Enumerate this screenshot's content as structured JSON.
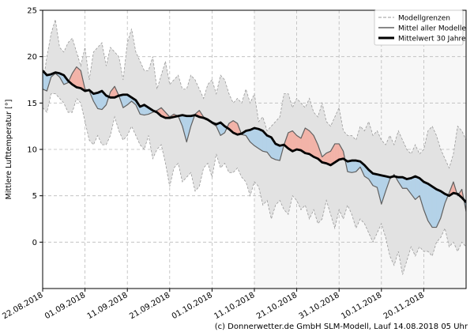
{
  "chart_data": {
    "type": "line",
    "ylabel": "Mittlere Lufttemperatur [°]",
    "ylim": [
      -5,
      25
    ],
    "yticks": [
      0,
      5,
      10,
      15,
      20,
      25
    ],
    "xticks": [
      "22.08.2018",
      "01.09.2018",
      "11.09.2018",
      "21.09.2018",
      "01.10.2018",
      "11.10.2018",
      "21.10.2018",
      "31.10.2018",
      "10.11.2018",
      "20.11.2018"
    ],
    "x_start": "2018-08-22",
    "x_end": "2018-11-30",
    "grid": true,
    "legend_position": "top-right",
    "colors": {
      "band": "#e2e2e2",
      "band_edge": "#9a9a9a",
      "mean_models": "#606060",
      "climatology": "#000000",
      "above": "#f2b3a8",
      "below": "#b4d2e8"
    },
    "series": [
      {
        "name": "Modellgrenzen",
        "role": "band",
        "upper": [
          17.0,
          20.0,
          22.5,
          24.0,
          21.0,
          20.5,
          21.5,
          22.0,
          20.5,
          19.0,
          21.0,
          17.5,
          20.5,
          21.0,
          21.5,
          19.0,
          21.0,
          20.5,
          20.0,
          17.5,
          21.5,
          23.0,
          20.5,
          19.5,
          18.5,
          18.5,
          20.0,
          16.5,
          18.0,
          19.5,
          17.0,
          17.5,
          18.0,
          16.5,
          16.5,
          18.0,
          17.5,
          16.5,
          15.5,
          17.0,
          17.5,
          16.0,
          18.0,
          17.5,
          16.0,
          15.0,
          15.5,
          15.0,
          16.5,
          15.0,
          16.0,
          13.0,
          13.5,
          12.0,
          12.5,
          13.0,
          13.5,
          16.0,
          16.0,
          14.5,
          15.5,
          15.0,
          14.5,
          15.5,
          14.0,
          13.5,
          15.0,
          13.0,
          12.5,
          13.5,
          14.5,
          12.0,
          11.5,
          11.5,
          11.0,
          12.5,
          12.0,
          13.0,
          11.5,
          12.0,
          11.0,
          10.5,
          11.5,
          10.5,
          12.0,
          11.0,
          10.0,
          9.5,
          10.5,
          9.5,
          10.0,
          12.0,
          12.5,
          11.5,
          10.0,
          9.0,
          8.0,
          9.5,
          12.5,
          12.0,
          11.0
        ],
        "lower": [
          14.5,
          14.0,
          16.0,
          16.0,
          15.5,
          15.0,
          14.0,
          14.0,
          15.5,
          15.0,
          13.0,
          11.0,
          10.5,
          11.5,
          10.5,
          10.5,
          11.5,
          13.5,
          12.0,
          11.0,
          11.5,
          12.5,
          11.5,
          10.5,
          10.0,
          11.5,
          9.0,
          10.0,
          10.5,
          8.5,
          6.0,
          8.0,
          8.5,
          6.5,
          7.0,
          7.5,
          5.5,
          6.0,
          8.0,
          8.5,
          7.0,
          9.5,
          8.0,
          8.5,
          7.5,
          7.5,
          8.0,
          7.0,
          6.5,
          5.0,
          6.5,
          6.0,
          4.0,
          4.5,
          2.5,
          4.0,
          4.5,
          3.5,
          3.0,
          5.0,
          4.5,
          3.5,
          4.0,
          2.5,
          3.5,
          2.0,
          2.5,
          4.5,
          3.0,
          1.5,
          3.5,
          2.5,
          4.0,
          3.0,
          1.5,
          2.5,
          2.0,
          1.0,
          0.0,
          1.0,
          2.0,
          0.5,
          -1.5,
          -2.5,
          -1.0,
          -3.5,
          -2.0,
          -0.5,
          -1.5,
          -0.5,
          -1.0,
          -1.0,
          -1.5,
          0.0,
          0.5,
          1.5,
          -0.5,
          0.0,
          -1.0,
          0.0,
          -0.5
        ]
      },
      {
        "name": "Mittel aller Modelle",
        "role": "mean",
        "values": [
          16.5,
          16.3,
          17.8,
          18.2,
          17.8,
          17.0,
          17.2,
          18.2,
          18.9,
          18.5,
          16.5,
          16.3,
          15.2,
          14.4,
          14.3,
          14.8,
          16.2,
          16.8,
          15.8,
          14.5,
          14.8,
          15.2,
          14.8,
          13.8,
          13.7,
          13.8,
          14.0,
          14.2,
          14.5,
          14.0,
          13.5,
          13.8,
          13.6,
          12.5,
          10.8,
          12.5,
          13.8,
          14.2,
          13.5,
          13.3,
          12.8,
          12.5,
          11.5,
          11.8,
          12.8,
          13.1,
          12.8,
          11.6,
          11.5,
          10.8,
          10.4,
          10.1,
          9.8,
          9.7,
          9.1,
          8.9,
          8.8,
          10.5,
          11.8,
          12.0,
          11.5,
          11.2,
          12.3,
          12.0,
          11.5,
          10.5,
          9.2,
          9.6,
          9.8,
          10.6,
          10.6,
          9.8,
          7.6,
          7.5,
          7.6,
          8.1,
          7.1,
          6.8,
          6.1,
          5.9,
          4.1,
          5.5,
          6.8,
          7.3,
          6.5,
          5.8,
          5.8,
          5.2,
          4.6,
          5.0,
          3.5,
          2.3,
          1.6,
          1.6,
          2.6,
          4.2,
          5.3,
          6.5,
          5.0,
          5.7,
          3.3
        ]
      },
      {
        "name": "Mittelwert 30 Jahre",
        "role": "climatology",
        "values": [
          18.5,
          18.0,
          18.1,
          18.3,
          18.2,
          18.0,
          17.4,
          17.0,
          16.7,
          16.6,
          16.3,
          16.4,
          16.0,
          16.1,
          16.3,
          15.8,
          15.6,
          15.6,
          15.8,
          15.9,
          15.9,
          15.6,
          15.3,
          14.6,
          14.8,
          14.5,
          14.2,
          14.0,
          13.6,
          13.4,
          13.4,
          13.5,
          13.6,
          13.7,
          13.6,
          13.6,
          13.7,
          13.5,
          13.4,
          13.2,
          12.9,
          12.7,
          12.9,
          12.5,
          12.2,
          11.8,
          11.6,
          11.7,
          12.0,
          12.1,
          12.3,
          12.2,
          12.0,
          11.5,
          11.3,
          10.6,
          10.4,
          10.5,
          10.1,
          9.8,
          10.0,
          9.9,
          9.6,
          9.5,
          9.2,
          9.0,
          8.6,
          8.5,
          8.3,
          8.6,
          8.9,
          9.0,
          8.7,
          8.8,
          8.8,
          8.7,
          8.3,
          7.8,
          7.4,
          7.3,
          7.2,
          7.1,
          7.0,
          7.1,
          7.0,
          7.0,
          6.8,
          6.9,
          7.1,
          6.9,
          6.5,
          6.3,
          6.0,
          5.7,
          5.5,
          5.2,
          5.0,
          5.3,
          5.2,
          4.8,
          4.3
        ]
      }
    ]
  },
  "credit": "(c) Donnerwetter.de GmbH SLM-Modell, Lauf 14.08.2018 05 Uhr"
}
